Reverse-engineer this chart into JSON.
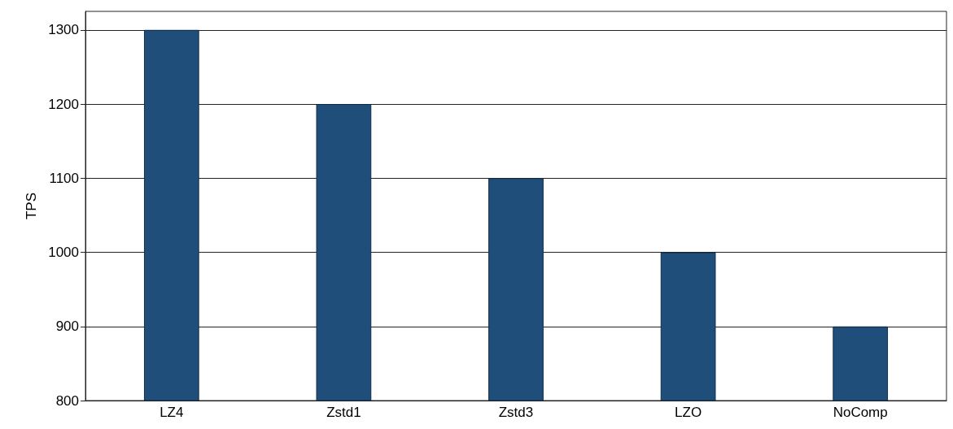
{
  "chart_data": {
    "type": "bar",
    "ylabel": "TPS",
    "categories": [
      "LZ4",
      "Zstd1",
      "Zstd3",
      "LZO",
      "NoComp"
    ],
    "values": [
      1300,
      1200,
      1100,
      1000,
      900
    ],
    "color": "#1f4e7a",
    "ylim": [
      800,
      1325
    ],
    "yticks": [
      800,
      900,
      1000,
      1100,
      1200,
      1300
    ],
    "grid": "y"
  }
}
